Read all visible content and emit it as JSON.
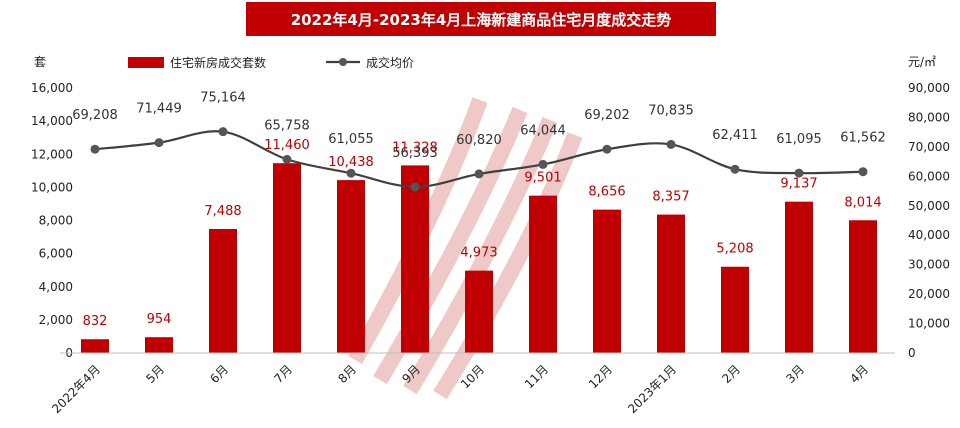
{
  "chart_data": {
    "type": "bar",
    "title": "2022年4月-2023年4月上海新建商品住宅月度成交走势",
    "categories": [
      "2022年4月",
      "5月",
      "6月",
      "7月",
      "8月",
      "9月",
      "10月",
      "11月",
      "12月",
      "2023年1月",
      "2月",
      "3月",
      "4月"
    ],
    "series": [
      {
        "name": "住宅新房成交套数",
        "type": "bar",
        "axis": "left",
        "color": "#c00000",
        "values": [
          832,
          954,
          7488,
          11460,
          10438,
          11328,
          4973,
          9501,
          8656,
          8357,
          5208,
          9137,
          8014
        ],
        "labels": [
          "832",
          "954",
          "7,488",
          "11,460",
          "10,438",
          "11,328",
          "4,973",
          "9,501",
          "8,656",
          "8,357",
          "5,208",
          "9,137",
          "8,014"
        ]
      },
      {
        "name": "成交均价",
        "type": "line",
        "axis": "right",
        "color": "#555555",
        "values": [
          69208,
          71449,
          75164,
          65758,
          61055,
          56393,
          60820,
          64044,
          69202,
          70835,
          62411,
          61095,
          61562
        ],
        "labels": [
          "69,208",
          "71,449",
          "75,164",
          "65,758",
          "61,055",
          "56,393",
          "60,820",
          "64,044",
          "69,202",
          "70,835",
          "62,411",
          "61,095",
          "61,562"
        ]
      }
    ],
    "y_left": {
      "unit": "套",
      "range": [
        0,
        16000
      ],
      "ticks": [
        "0",
        "2,000",
        "4,000",
        "6,000",
        "8,000",
        "10,000",
        "12,000",
        "14,000",
        "16,000"
      ]
    },
    "y_right": {
      "unit": "元/㎡",
      "range": [
        0,
        90000
      ],
      "ticks": [
        "0",
        "10,000",
        "20,000",
        "30,000",
        "40,000",
        "50,000",
        "60,000",
        "70,000",
        "80,000",
        "90,000"
      ]
    },
    "grid": false,
    "legend": "top-left"
  }
}
